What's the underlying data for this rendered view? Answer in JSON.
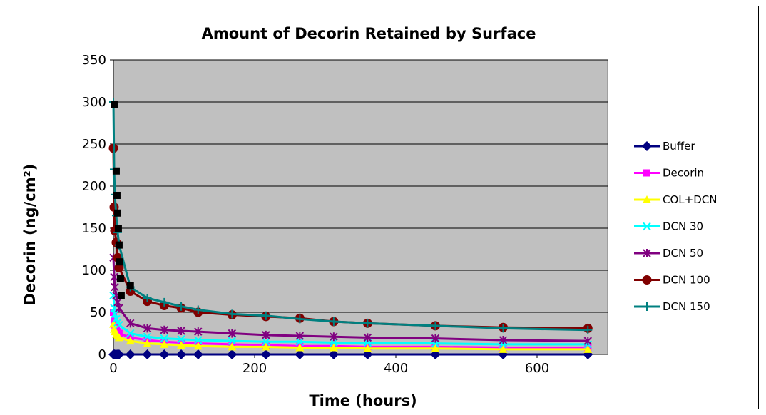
{
  "chart_data": {
    "type": "line",
    "title": "Amount of Decorin Retained by Surface",
    "xlabel": "Time (hours)",
    "ylabel": "Decorin (ng/cm²)",
    "xlim": [
      0,
      700
    ],
    "ylim": [
      0,
      350
    ],
    "xticks": [
      0,
      200,
      400,
      600
    ],
    "yticks": [
      0,
      50,
      100,
      150,
      200,
      250,
      300,
      350
    ],
    "grid": "horizontal",
    "plot_background": "#c0c0c0",
    "legend_position": "right",
    "x": [
      0,
      1,
      2,
      4,
      6,
      8,
      24,
      48,
      72,
      96,
      120,
      168,
      216,
      264,
      312,
      360,
      456,
      552,
      672
    ],
    "series": [
      {
        "name": "Buffer",
        "color": "#000080",
        "marker": "diamond",
        "values": [
          0,
          0,
          0,
          0,
          0,
          0,
          0,
          0,
          0,
          0,
          0,
          0,
          0,
          0,
          0,
          0,
          0,
          0,
          0
        ]
      },
      {
        "name": "Decorin",
        "color": "#ff00ff",
        "marker": "square",
        "values": [
          50,
          40,
          35,
          30,
          27,
          25,
          20,
          17,
          15,
          14,
          13,
          12,
          11,
          10,
          10,
          9,
          9,
          8,
          8
        ]
      },
      {
        "name": "COL+DCN",
        "color": "#ffff00",
        "marker": "triangle",
        "values": [
          36,
          30,
          27,
          24,
          22,
          20,
          16,
          13,
          12,
          11,
          10,
          9,
          9,
          8,
          8,
          7,
          7,
          6,
          6
        ]
      },
      {
        "name": "DCN 30",
        "color": "#00ffff",
        "marker": "x",
        "values": [
          70,
          55,
          48,
          42,
          38,
          35,
          25,
          21,
          19,
          18,
          17,
          16,
          15,
          15,
          14,
          14,
          13,
          12,
          12
        ]
      },
      {
        "name": "DCN 50",
        "color": "#800080",
        "marker": "star",
        "values": [
          115,
          92,
          80,
          70,
          62,
          55,
          37,
          31,
          29,
          28,
          27,
          25,
          23,
          22,
          21,
          20,
          19,
          17,
          16
        ]
      },
      {
        "name": "DCN 100",
        "color": "#800000",
        "marker": "circle",
        "values": [
          245,
          175,
          147,
          133,
          115,
          103,
          75,
          63,
          58,
          55,
          50,
          47,
          45,
          43,
          39,
          37,
          34,
          32,
          31
        ]
      },
      {
        "name": "DCN 150",
        "color": "#008080",
        "marker": "plus",
        "values": [
          300,
          220,
          190,
          165,
          145,
          130,
          80,
          67,
          62,
          57,
          53,
          48,
          46,
          42,
          39,
          37,
          34,
          31,
          29
        ]
      }
    ],
    "extra_markers": {
      "color": "#000000",
      "marker": "square",
      "x": [
        2,
        4,
        5,
        6,
        7,
        8,
        9,
        10,
        11,
        24
      ],
      "values": [
        297,
        218,
        189,
        168,
        150,
        130,
        110,
        90,
        70,
        82
      ]
    }
  }
}
